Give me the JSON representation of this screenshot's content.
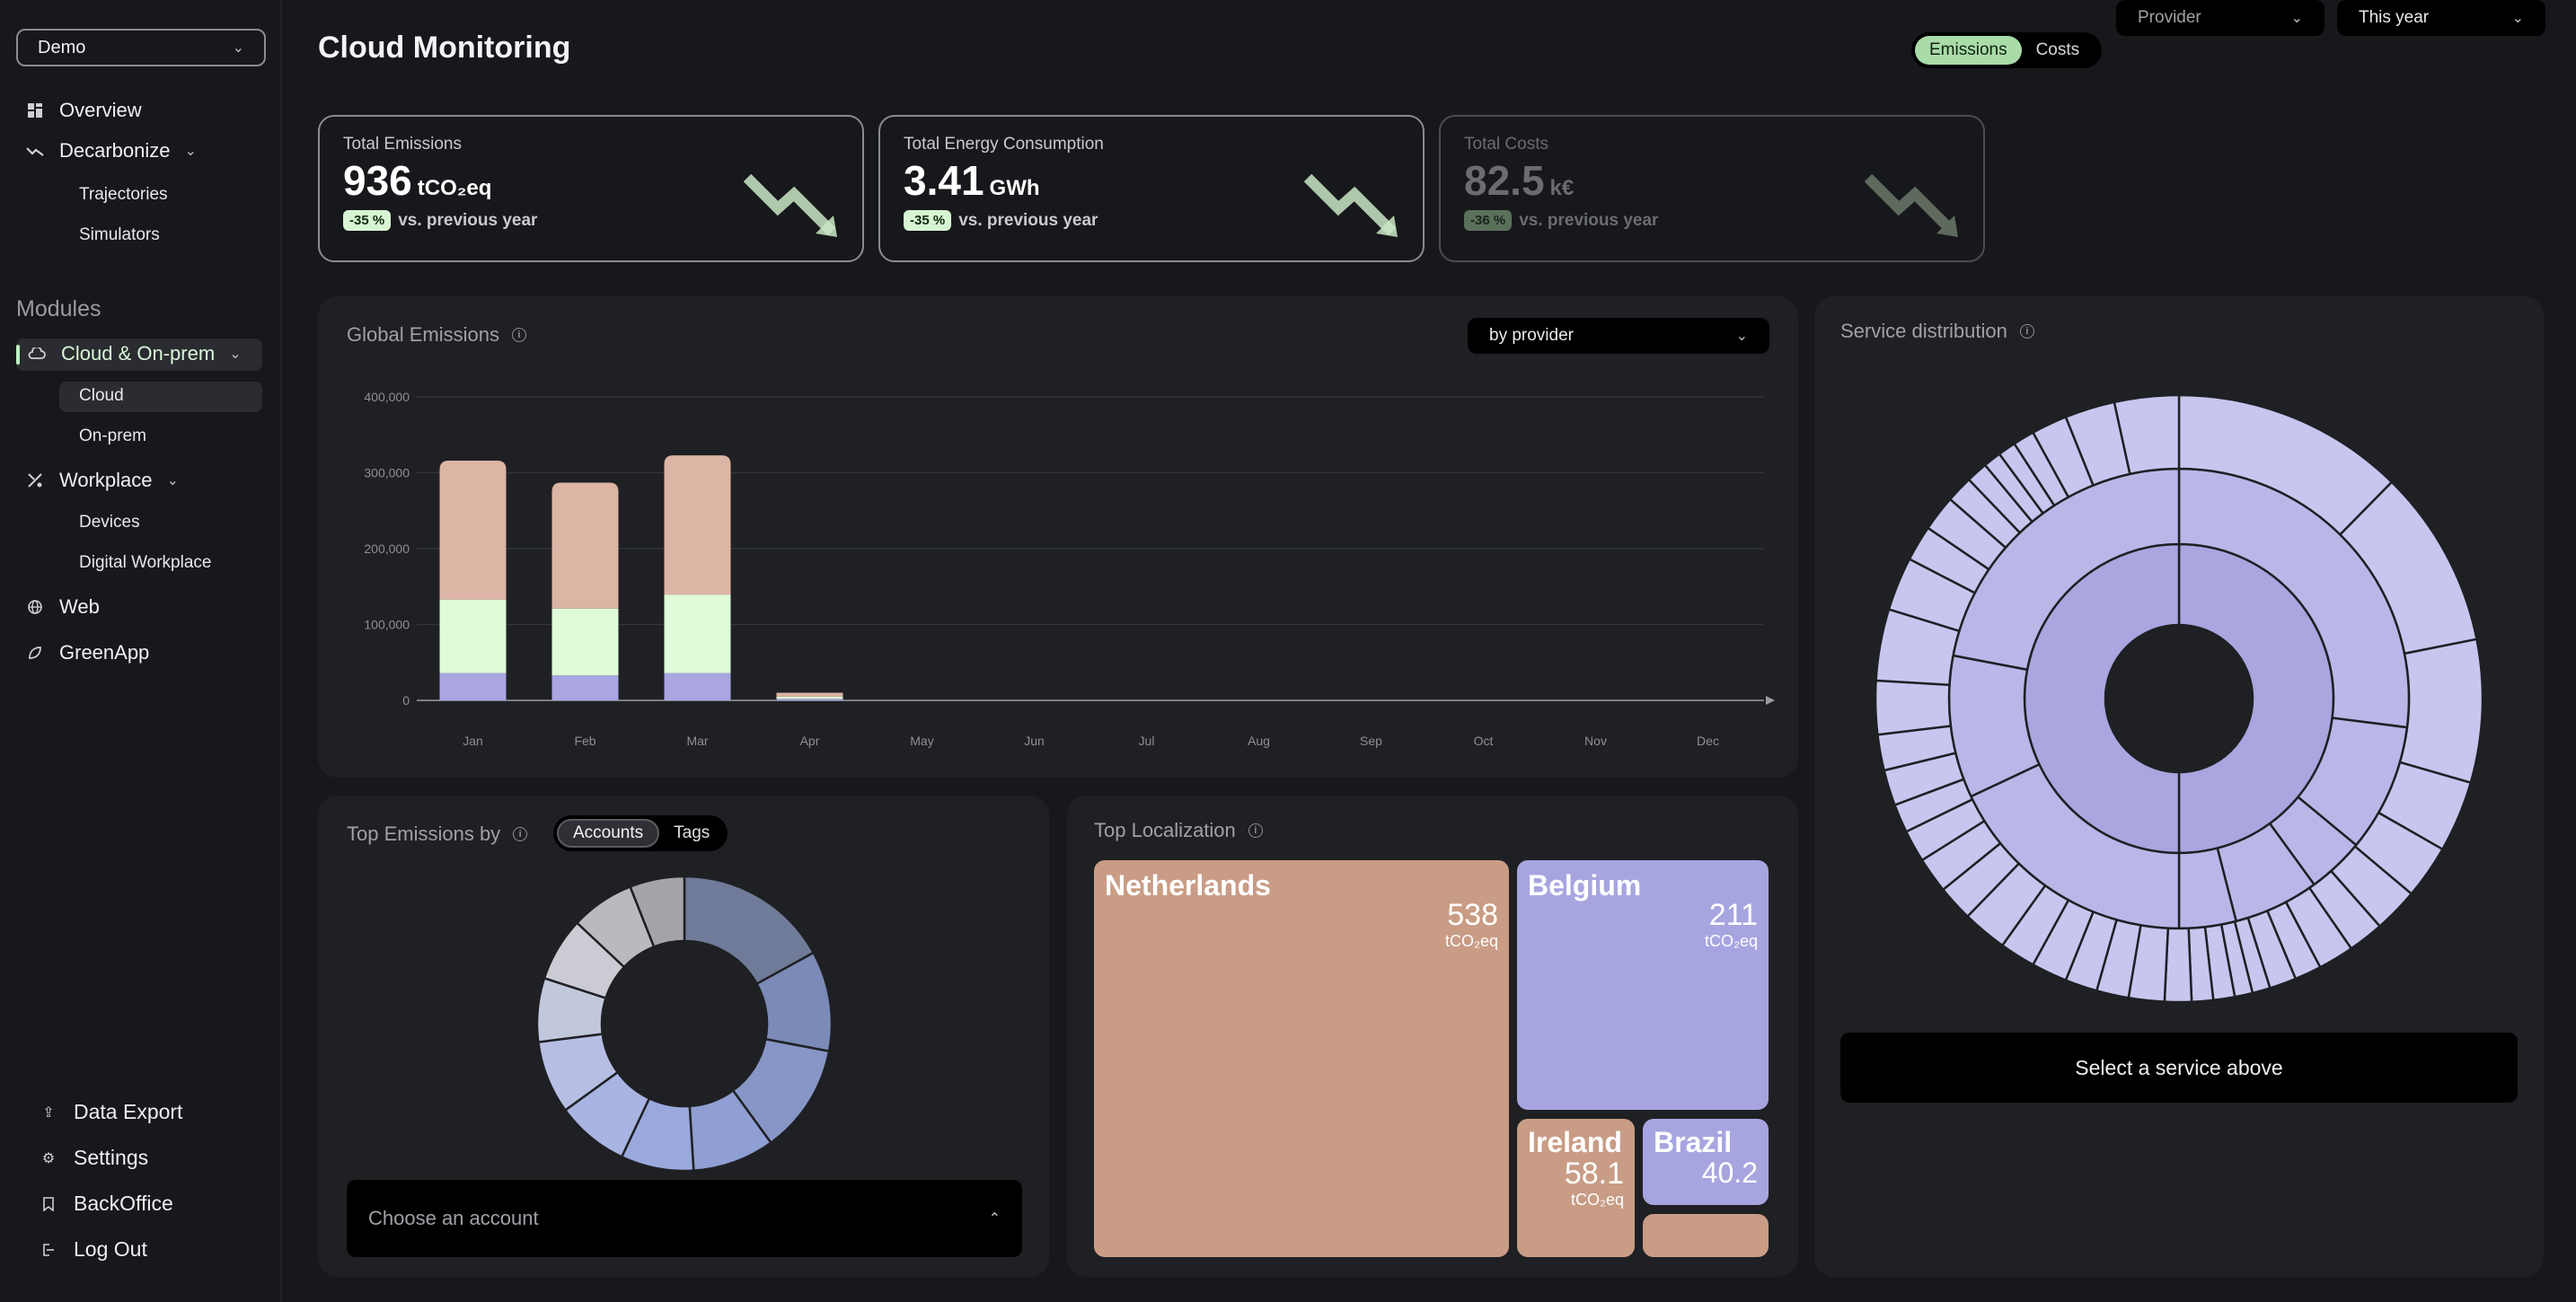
{
  "sidebar": {
    "org_select": {
      "value": "Demo"
    },
    "nav": {
      "overview": "Overview",
      "decarbonize": "Decarbonize",
      "trajectories": "Trajectories",
      "simulators": "Simulators",
      "modules": "Modules",
      "cloud_onprem": "Cloud & On-prem",
      "cloud": "Cloud",
      "onprem": "On-prem",
      "workplace": "Workplace",
      "devices": "Devices",
      "digital_workplace": "Digital Workplace",
      "web": "Web",
      "greenapp": "GreenApp"
    },
    "bottom": {
      "data_export": "Data Export",
      "settings": "Settings",
      "backoffice": "BackOffice",
      "logout": "Log Out"
    }
  },
  "header": {
    "title": "Cloud Monitoring",
    "toggle": {
      "emissions": "Emissions",
      "costs": "Costs"
    },
    "provider_select": "Provider",
    "period_select": "This year"
  },
  "kpis": {
    "emissions": {
      "label": "Total Emissions",
      "value": "936",
      "unit": "tCO₂eq",
      "delta": "-35 %",
      "delta_text": "vs. previous year"
    },
    "energy": {
      "label": "Total Energy Consumption",
      "value": "3.41",
      "unit": "GWh",
      "delta": "-35 %",
      "delta_text": "vs. previous year"
    },
    "costs": {
      "label": "Total Costs",
      "value": "82.5",
      "unit": "k€",
      "delta": "-36 %",
      "delta_text": "vs. previous year"
    }
  },
  "global_emissions": {
    "title": "Global Emissions",
    "group_select": "by provider"
  },
  "chart_data": {
    "type": "bar",
    "stacked": true,
    "categories": [
      "Jan",
      "Feb",
      "Mar",
      "Apr",
      "May",
      "Jun",
      "Jul",
      "Aug",
      "Sep",
      "Oct",
      "Nov",
      "Dec"
    ],
    "y_ticks": [
      "0",
      "100,000",
      "200,000",
      "300,000",
      "400,000"
    ],
    "ylim": [
      0,
      400000
    ],
    "series": [
      {
        "color": "#a9a6e2",
        "values": [
          36000,
          33000,
          36000,
          2000,
          0,
          0,
          0,
          0,
          0,
          0,
          0,
          0
        ]
      },
      {
        "color": "#dffbd8",
        "values": [
          97000,
          88000,
          103000,
          3000,
          0,
          0,
          0,
          0,
          0,
          0,
          0,
          0
        ]
      },
      {
        "color": "#dcb5a5",
        "values": [
          183000,
          166000,
          184000,
          5000,
          0,
          0,
          0,
          0,
          0,
          0,
          0,
          0
        ]
      }
    ],
    "grid": true
  },
  "top_emissions": {
    "title": "Top Emissions by",
    "tabs": {
      "accounts": "Accounts",
      "tags": "Tags"
    },
    "choose_placeholder": "Choose an account",
    "donut_colors": [
      "#6f7b98",
      "#7b8ab6",
      "#8796c6",
      "#8f9ed3",
      "#9aa9dd",
      "#a8b4e2",
      "#b6bfe3",
      "#c2c8dc",
      "#cacbd3",
      "#b9babf",
      "#a4a5a9"
    ]
  },
  "top_localization": {
    "title": "Top Localization",
    "tiles": [
      {
        "name": "Netherlands",
        "value": "538",
        "unit": "tCO₂eq",
        "color": "#c99c85"
      },
      {
        "name": "Belgium",
        "value": "211",
        "unit": "tCO₂eq",
        "color": "#a7a5e0"
      },
      {
        "name": "Ireland",
        "value": "58.1",
        "unit": "tCO₂eq",
        "color": "#c99c85"
      },
      {
        "name": "Brazil",
        "value": "40.2",
        "unit": "",
        "color": "#a7a5e0"
      },
      {
        "name": "",
        "value": "",
        "unit": "",
        "color": "#c99c85"
      }
    ]
  },
  "service_distribution": {
    "title": "Service distribution",
    "select_label": "Select a service above"
  }
}
